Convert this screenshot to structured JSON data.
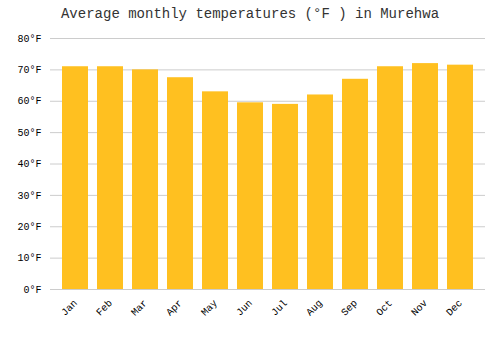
{
  "chart_data": {
    "type": "bar",
    "title": "Average monthly temperatures (°F ) in Murehwa",
    "categories": [
      "Jan",
      "Feb",
      "Mar",
      "Apr",
      "May",
      "Jun",
      "Jul",
      "Aug",
      "Sep",
      "Oct",
      "Nov",
      "Dec"
    ],
    "values": [
      71,
      71,
      70,
      67.5,
      63,
      59.5,
      59,
      62,
      67,
      71,
      72,
      71.5
    ],
    "color": "#FFC020",
    "ylim": [
      0,
      80
    ],
    "yticks": [
      {
        "value": 0,
        "label": "0°F"
      },
      {
        "value": 10,
        "label": "10°F"
      },
      {
        "value": 20,
        "label": "20°F"
      },
      {
        "value": 30,
        "label": "30°F"
      },
      {
        "value": 40,
        "label": "40°F"
      },
      {
        "value": 50,
        "label": "50°F"
      },
      {
        "value": 60,
        "label": "60°F"
      },
      {
        "value": 70,
        "label": "70°F"
      },
      {
        "value": 80,
        "label": "80°F"
      }
    ],
    "grid": true
  }
}
